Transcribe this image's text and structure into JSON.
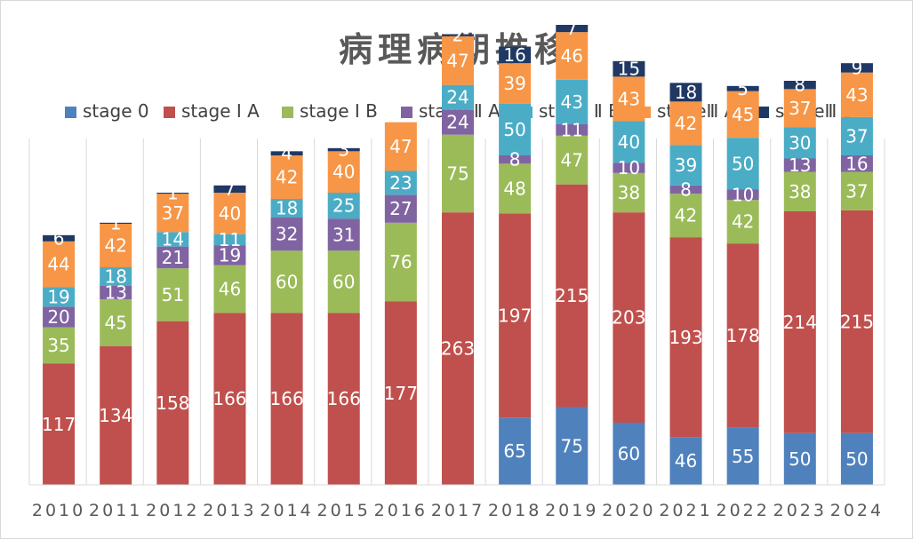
{
  "chart_data": {
    "type": "bar",
    "stacked": true,
    "title": "病理病期推移",
    "legend_position": "top",
    "grid": "vertical",
    "categories": [
      "2010",
      "2011",
      "2012",
      "2013",
      "2014",
      "2015",
      "2016",
      "2017",
      "2018",
      "2019",
      "2020",
      "2021",
      "2022",
      "2023",
      "2024"
    ],
    "ylim": [
      0,
      430
    ],
    "series": [
      {
        "name": "stage 0",
        "color": "#4f81bd",
        "values": [
          0,
          0,
          0,
          0,
          0,
          0,
          0,
          0,
          65,
          75,
          60,
          46,
          55,
          50,
          50
        ]
      },
      {
        "name": "stage Ⅰ A",
        "color": "#c0504d",
        "values": [
          117,
          134,
          158,
          166,
          166,
          166,
          177,
          263,
          197,
          215,
          203,
          193,
          178,
          214,
          215
        ]
      },
      {
        "name": "stage Ⅰ B",
        "color": "#9bbb59",
        "values": [
          35,
          45,
          51,
          46,
          60,
          60,
          76,
          75,
          48,
          47,
          38,
          42,
          42,
          38,
          37
        ]
      },
      {
        "name": "stage Ⅱ A",
        "color": "#8064a2",
        "values": [
          20,
          13,
          21,
          19,
          32,
          31,
          27,
          24,
          8,
          11,
          10,
          8,
          10,
          13,
          16
        ]
      },
      {
        "name": "stage Ⅱ B",
        "color": "#4bacc6",
        "values": [
          19,
          18,
          14,
          11,
          18,
          25,
          23,
          24,
          50,
          43,
          40,
          39,
          50,
          30,
          37
        ]
      },
      {
        "name": "stageⅢ A",
        "color": "#f79646",
        "values": [
          44,
          42,
          37,
          40,
          42,
          40,
          47,
          47,
          39,
          46,
          43,
          42,
          45,
          37,
          43
        ]
      },
      {
        "name": "stageⅢ B",
        "color": "#1f3864",
        "values": [
          6,
          1,
          1,
          7,
          4,
          3,
          0,
          2,
          16,
          7,
          15,
          18,
          5,
          8,
          9
        ]
      }
    ]
  }
}
